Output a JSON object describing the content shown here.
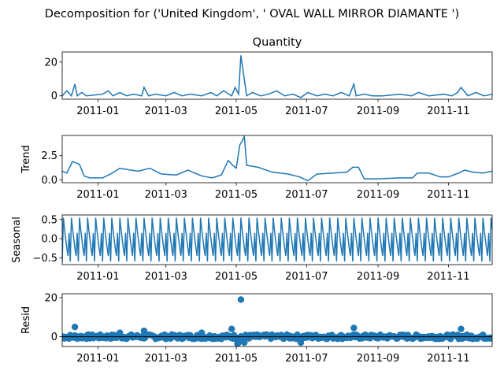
{
  "figure": {
    "title": "Decomposition for ('United Kingdom', ' OVAL WALL MIRROR DIAMANTE ')"
  },
  "chart_data": [
    {
      "type": "line",
      "panel": "observed",
      "title": "Quantity",
      "ylabel": "",
      "x_range": [
        "2010-12-01",
        "2011-12-09"
      ],
      "ylim": [
        -2,
        26
      ],
      "yticks": [
        0,
        20
      ],
      "xticks": [
        "2011-01-01",
        "2011-03-01",
        "2011-05-01",
        "2011-07-01",
        "2011-09-01",
        "2011-11-01"
      ],
      "xtick_labels": [
        "2011-01",
        "2011-03",
        "2011-05",
        "2011-07",
        "2011-09",
        "2011-11"
      ],
      "x": [
        "2010-12-01",
        "2010-12-05",
        "2010-12-09",
        "2010-12-12",
        "2010-12-14",
        "2010-12-18",
        "2010-12-22",
        "2011-01-05",
        "2011-01-10",
        "2011-01-14",
        "2011-01-20",
        "2011-01-26",
        "2011-02-01",
        "2011-02-08",
        "2011-02-10",
        "2011-02-14",
        "2011-02-20",
        "2011-03-01",
        "2011-03-08",
        "2011-03-15",
        "2011-03-22",
        "2011-04-01",
        "2011-04-09",
        "2011-04-14",
        "2011-04-20",
        "2011-04-27",
        "2011-04-30",
        "2011-05-03",
        "2011-05-05",
        "2011-05-10",
        "2011-05-15",
        "2011-05-22",
        "2011-05-29",
        "2011-06-05",
        "2011-06-12",
        "2011-06-19",
        "2011-06-26",
        "2011-07-02",
        "2011-07-10",
        "2011-07-17",
        "2011-07-24",
        "2011-07-31",
        "2011-08-07",
        "2011-08-11",
        "2011-08-13",
        "2011-08-20",
        "2011-08-27",
        "2011-09-05",
        "2011-09-20",
        "2011-09-30",
        "2011-10-06",
        "2011-10-15",
        "2011-10-28",
        "2011-11-04",
        "2011-11-09",
        "2011-11-12",
        "2011-11-18",
        "2011-11-25",
        "2011-12-02",
        "2011-12-09"
      ],
      "values": [
        0,
        3,
        0,
        7,
        0,
        2,
        0,
        1,
        3,
        0,
        2,
        0,
        1,
        0,
        5,
        0,
        1,
        0,
        2,
        0,
        1,
        0,
        2,
        0,
        3,
        0,
        5,
        1,
        24,
        0,
        2,
        0,
        1,
        3,
        0,
        1,
        -1,
        2,
        0,
        1,
        0,
        2,
        0,
        7,
        0,
        1,
        0,
        0,
        1,
        0,
        2,
        0,
        1,
        0,
        2,
        5,
        0,
        2,
        0,
        1
      ]
    },
    {
      "type": "line",
      "panel": "trend",
      "ylabel": "Trend",
      "x_range": [
        "2010-12-01",
        "2011-12-09"
      ],
      "ylim": [
        -0.3,
        4.6
      ],
      "yticks": [
        0.0,
        2.5
      ],
      "ytick_labels": [
        "0.0",
        "2.5"
      ],
      "xticks": [
        "2011-01-01",
        "2011-03-01",
        "2011-05-01",
        "2011-07-01",
        "2011-09-01",
        "2011-11-01"
      ],
      "xtick_labels": [
        "2011-01",
        "2011-03",
        "2011-05",
        "2011-07",
        "2011-09",
        "2011-11"
      ],
      "x": [
        "2010-12-01",
        "2010-12-05",
        "2010-12-10",
        "2010-12-16",
        "2010-12-20",
        "2010-12-25",
        "2011-01-05",
        "2011-01-12",
        "2011-01-20",
        "2011-01-30",
        "2011-02-05",
        "2011-02-15",
        "2011-02-25",
        "2011-03-10",
        "2011-03-20",
        "2011-04-01",
        "2011-04-10",
        "2011-04-18",
        "2011-04-24",
        "2011-04-28",
        "2011-05-01",
        "2011-05-04",
        "2011-05-06",
        "2011-05-08",
        "2011-05-10",
        "2011-05-20",
        "2011-06-01",
        "2011-06-15",
        "2011-06-25",
        "2011-07-02",
        "2011-07-10",
        "2011-07-25",
        "2011-08-05",
        "2011-08-10",
        "2011-08-15",
        "2011-08-20",
        "2011-09-01",
        "2011-09-20",
        "2011-10-01",
        "2011-10-05",
        "2011-10-15",
        "2011-10-25",
        "2011-11-01",
        "2011-11-10",
        "2011-11-15",
        "2011-11-22",
        "2011-12-01",
        "2011-12-09"
      ],
      "values": [
        0.9,
        0.7,
        1.9,
        1.6,
        0.4,
        0.2,
        0.2,
        0.6,
        1.2,
        1.0,
        0.9,
        1.2,
        0.6,
        0.5,
        1.0,
        0.4,
        0.2,
        0.5,
        2.0,
        1.5,
        1.2,
        3.6,
        4.0,
        4.5,
        1.5,
        1.3,
        0.8,
        0.6,
        0.3,
        -0.1,
        0.6,
        0.7,
        0.8,
        1.3,
        1.3,
        0.1,
        0.1,
        0.2,
        0.2,
        0.7,
        0.7,
        0.3,
        0.3,
        0.7,
        1.0,
        0.8,
        0.7,
        0.9
      ]
    },
    {
      "type": "line",
      "panel": "seasonal",
      "ylabel": "Seasonal",
      "x_range": [
        "2010-12-01",
        "2011-12-09"
      ],
      "ylim": [
        -0.68,
        0.62
      ],
      "yticks": [
        -0.5,
        0.0,
        0.5
      ],
      "ytick_labels": [
        "−0.5",
        "0.0",
        "0.5"
      ],
      "xticks": [
        "2011-01-01",
        "2011-03-01",
        "2011-05-01",
        "2011-07-01",
        "2011-09-01",
        "2011-11-01"
      ],
      "xtick_labels": [
        "2011-01",
        "2011-03",
        "2011-05",
        "2011-07",
        "2011-09",
        "2011-11"
      ],
      "period_days": 7,
      "pattern": [
        -0.6,
        0.55,
        0.25,
        0.0,
        -0.25,
        -0.45,
        0.15
      ]
    },
    {
      "type": "scatter",
      "panel": "resid",
      "ylabel": "Resid",
      "x_range": [
        "2010-12-01",
        "2011-12-09"
      ],
      "ylim": [
        -5,
        22
      ],
      "yticks": [
        0,
        20
      ],
      "xticks": [
        "2011-01-01",
        "2011-03-01",
        "2011-05-01",
        "2011-07-01",
        "2011-09-01",
        "2011-11-01"
      ],
      "xtick_labels": [
        "2011-01",
        "2011-03",
        "2011-05",
        "2011-07",
        "2011-09",
        "2011-11"
      ],
      "outliers_x": [
        "2010-12-12",
        "2011-01-20",
        "2011-02-10",
        "2011-04-01",
        "2011-04-27",
        "2011-05-05",
        "2011-08-11",
        "2011-11-12",
        "2011-05-02",
        "2011-05-03",
        "2011-05-08",
        "2011-06-26"
      ],
      "outliers_y": [
        5,
        2,
        3,
        2,
        4,
        19,
        4.5,
        4,
        -3.5,
        -3,
        -3,
        -3
      ]
    }
  ]
}
